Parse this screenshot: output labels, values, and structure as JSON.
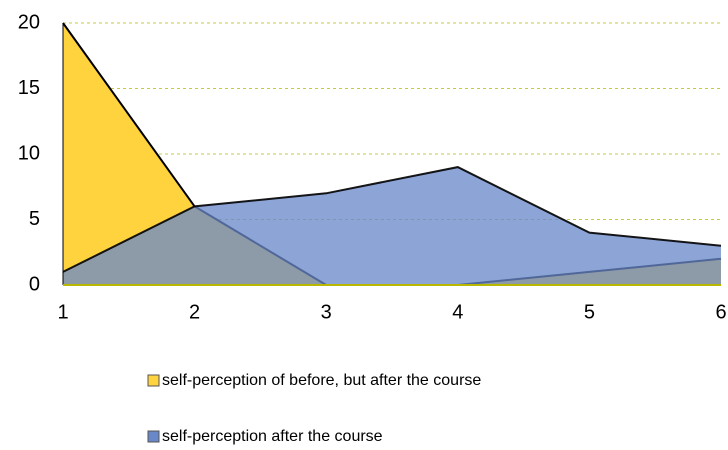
{
  "chart_data": {
    "type": "area",
    "categories": [
      "1",
      "2",
      "3",
      "4",
      "5",
      "6"
    ],
    "series": [
      {
        "name": "self-perception of before, but after the course",
        "color": "#ffd33d",
        "values": [
          20,
          6,
          0,
          0,
          1,
          2
        ]
      },
      {
        "name": "self-perception after the course",
        "color": "#6988c9",
        "values": [
          1,
          6,
          7,
          9,
          4,
          3
        ]
      }
    ],
    "ylim": [
      0,
      20
    ],
    "yticks": [
      0,
      5,
      10,
      15,
      20
    ],
    "grid": true
  }
}
